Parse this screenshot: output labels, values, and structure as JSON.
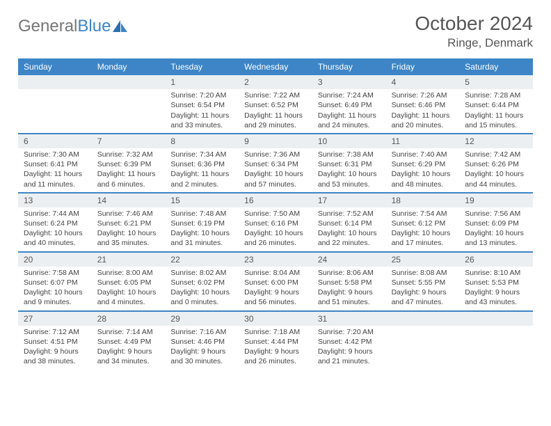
{
  "brand": {
    "part1": "General",
    "part2": "Blue"
  },
  "title": "October 2024",
  "location": "Ringe, Denmark",
  "colors": {
    "header_bg": "#3d85c6",
    "header_text": "#ffffff",
    "daynum_bg": "#eceff1",
    "border": "#3d85c6",
    "text": "#444444"
  },
  "day_names": [
    "Sunday",
    "Monday",
    "Tuesday",
    "Wednesday",
    "Thursday",
    "Friday",
    "Saturday"
  ],
  "weeks": [
    [
      null,
      null,
      {
        "n": "1",
        "sr": "Sunrise: 7:20 AM",
        "ss": "Sunset: 6:54 PM",
        "dl": "Daylight: 11 hours and 33 minutes."
      },
      {
        "n": "2",
        "sr": "Sunrise: 7:22 AM",
        "ss": "Sunset: 6:52 PM",
        "dl": "Daylight: 11 hours and 29 minutes."
      },
      {
        "n": "3",
        "sr": "Sunrise: 7:24 AM",
        "ss": "Sunset: 6:49 PM",
        "dl": "Daylight: 11 hours and 24 minutes."
      },
      {
        "n": "4",
        "sr": "Sunrise: 7:26 AM",
        "ss": "Sunset: 6:46 PM",
        "dl": "Daylight: 11 hours and 20 minutes."
      },
      {
        "n": "5",
        "sr": "Sunrise: 7:28 AM",
        "ss": "Sunset: 6:44 PM",
        "dl": "Daylight: 11 hours and 15 minutes."
      }
    ],
    [
      {
        "n": "6",
        "sr": "Sunrise: 7:30 AM",
        "ss": "Sunset: 6:41 PM",
        "dl": "Daylight: 11 hours and 11 minutes."
      },
      {
        "n": "7",
        "sr": "Sunrise: 7:32 AM",
        "ss": "Sunset: 6:39 PM",
        "dl": "Daylight: 11 hours and 6 minutes."
      },
      {
        "n": "8",
        "sr": "Sunrise: 7:34 AM",
        "ss": "Sunset: 6:36 PM",
        "dl": "Daylight: 11 hours and 2 minutes."
      },
      {
        "n": "9",
        "sr": "Sunrise: 7:36 AM",
        "ss": "Sunset: 6:34 PM",
        "dl": "Daylight: 10 hours and 57 minutes."
      },
      {
        "n": "10",
        "sr": "Sunrise: 7:38 AM",
        "ss": "Sunset: 6:31 PM",
        "dl": "Daylight: 10 hours and 53 minutes."
      },
      {
        "n": "11",
        "sr": "Sunrise: 7:40 AM",
        "ss": "Sunset: 6:29 PM",
        "dl": "Daylight: 10 hours and 48 minutes."
      },
      {
        "n": "12",
        "sr": "Sunrise: 7:42 AM",
        "ss": "Sunset: 6:26 PM",
        "dl": "Daylight: 10 hours and 44 minutes."
      }
    ],
    [
      {
        "n": "13",
        "sr": "Sunrise: 7:44 AM",
        "ss": "Sunset: 6:24 PM",
        "dl": "Daylight: 10 hours and 40 minutes."
      },
      {
        "n": "14",
        "sr": "Sunrise: 7:46 AM",
        "ss": "Sunset: 6:21 PM",
        "dl": "Daylight: 10 hours and 35 minutes."
      },
      {
        "n": "15",
        "sr": "Sunrise: 7:48 AM",
        "ss": "Sunset: 6:19 PM",
        "dl": "Daylight: 10 hours and 31 minutes."
      },
      {
        "n": "16",
        "sr": "Sunrise: 7:50 AM",
        "ss": "Sunset: 6:16 PM",
        "dl": "Daylight: 10 hours and 26 minutes."
      },
      {
        "n": "17",
        "sr": "Sunrise: 7:52 AM",
        "ss": "Sunset: 6:14 PM",
        "dl": "Daylight: 10 hours and 22 minutes."
      },
      {
        "n": "18",
        "sr": "Sunrise: 7:54 AM",
        "ss": "Sunset: 6:12 PM",
        "dl": "Daylight: 10 hours and 17 minutes."
      },
      {
        "n": "19",
        "sr": "Sunrise: 7:56 AM",
        "ss": "Sunset: 6:09 PM",
        "dl": "Daylight: 10 hours and 13 minutes."
      }
    ],
    [
      {
        "n": "20",
        "sr": "Sunrise: 7:58 AM",
        "ss": "Sunset: 6:07 PM",
        "dl": "Daylight: 10 hours and 9 minutes."
      },
      {
        "n": "21",
        "sr": "Sunrise: 8:00 AM",
        "ss": "Sunset: 6:05 PM",
        "dl": "Daylight: 10 hours and 4 minutes."
      },
      {
        "n": "22",
        "sr": "Sunrise: 8:02 AM",
        "ss": "Sunset: 6:02 PM",
        "dl": "Daylight: 10 hours and 0 minutes."
      },
      {
        "n": "23",
        "sr": "Sunrise: 8:04 AM",
        "ss": "Sunset: 6:00 PM",
        "dl": "Daylight: 9 hours and 56 minutes."
      },
      {
        "n": "24",
        "sr": "Sunrise: 8:06 AM",
        "ss": "Sunset: 5:58 PM",
        "dl": "Daylight: 9 hours and 51 minutes."
      },
      {
        "n": "25",
        "sr": "Sunrise: 8:08 AM",
        "ss": "Sunset: 5:55 PM",
        "dl": "Daylight: 9 hours and 47 minutes."
      },
      {
        "n": "26",
        "sr": "Sunrise: 8:10 AM",
        "ss": "Sunset: 5:53 PM",
        "dl": "Daylight: 9 hours and 43 minutes."
      }
    ],
    [
      {
        "n": "27",
        "sr": "Sunrise: 7:12 AM",
        "ss": "Sunset: 4:51 PM",
        "dl": "Daylight: 9 hours and 38 minutes."
      },
      {
        "n": "28",
        "sr": "Sunrise: 7:14 AM",
        "ss": "Sunset: 4:49 PM",
        "dl": "Daylight: 9 hours and 34 minutes."
      },
      {
        "n": "29",
        "sr": "Sunrise: 7:16 AM",
        "ss": "Sunset: 4:46 PM",
        "dl": "Daylight: 9 hours and 30 minutes."
      },
      {
        "n": "30",
        "sr": "Sunrise: 7:18 AM",
        "ss": "Sunset: 4:44 PM",
        "dl": "Daylight: 9 hours and 26 minutes."
      },
      {
        "n": "31",
        "sr": "Sunrise: 7:20 AM",
        "ss": "Sunset: 4:42 PM",
        "dl": "Daylight: 9 hours and 21 minutes."
      },
      null,
      null
    ]
  ]
}
